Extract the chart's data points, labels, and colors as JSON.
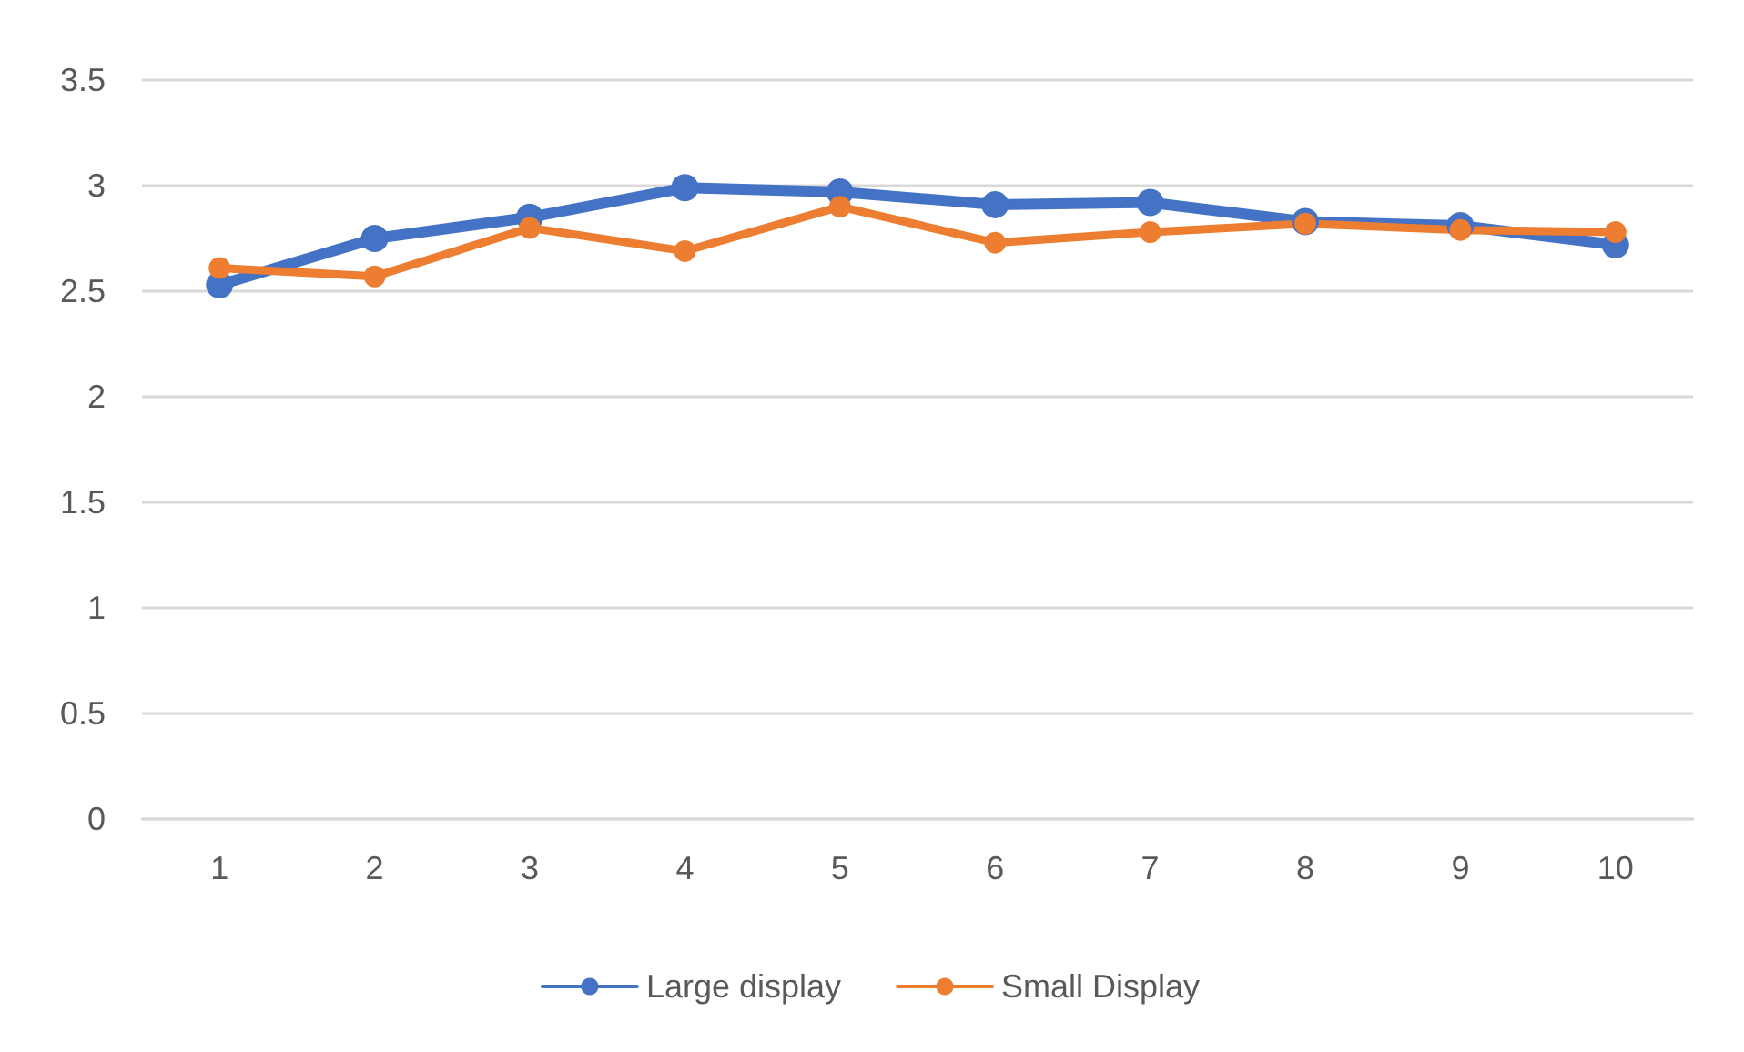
{
  "chart_data": {
    "type": "line",
    "categories": [
      "1",
      "2",
      "3",
      "4",
      "5",
      "6",
      "7",
      "8",
      "9",
      "10"
    ],
    "series": [
      {
        "name": "Large display",
        "color": "#4472c4",
        "values": [
          2.53,
          2.75,
          2.85,
          2.99,
          2.97,
          2.91,
          2.92,
          2.83,
          2.81,
          2.72
        ]
      },
      {
        "name": "Small Display",
        "color": "#ed7d31",
        "values": [
          2.61,
          2.57,
          2.8,
          2.69,
          2.9,
          2.73,
          2.78,
          2.82,
          2.79,
          2.78
        ]
      }
    ],
    "ylim": [
      0,
      3.5
    ],
    "yticks": [
      0,
      0.5,
      1,
      1.5,
      2,
      2.5,
      3,
      3.5
    ],
    "grid": "y",
    "legend": "bottom",
    "marker": "circle",
    "line_style": "solid"
  }
}
